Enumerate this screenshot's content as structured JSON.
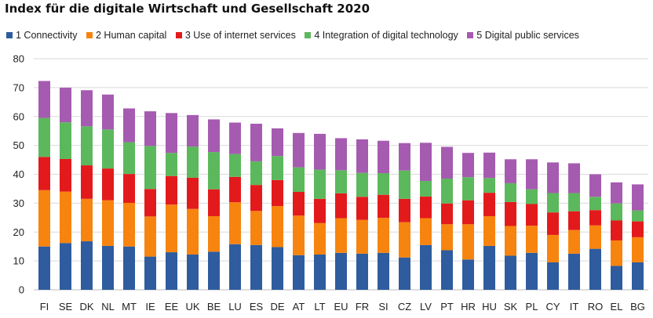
{
  "chart_data": {
    "type": "bar",
    "stacked": true,
    "title": "Index für die digitale Wirtschaft und Gesellschaft 2020",
    "xlabel": "",
    "ylabel": "",
    "ylim": [
      0,
      80
    ],
    "yticks": [
      0,
      10,
      20,
      30,
      40,
      50,
      60,
      70,
      80
    ],
    "grid": true,
    "legend_position": "top",
    "categories": [
      "FI",
      "SE",
      "DK",
      "NL",
      "MT",
      "IE",
      "EE",
      "UK",
      "BE",
      "LU",
      "ES",
      "DE",
      "AT",
      "LT",
      "EU",
      "FR",
      "SI",
      "CZ",
      "LV",
      "PT",
      "HR",
      "HU",
      "SK",
      "PL",
      "CY",
      "IT",
      "RO",
      "EL",
      "BG"
    ],
    "series": [
      {
        "name": "1 Connectivity",
        "color": "#2E5C9E",
        "values": [
          15.0,
          16.2,
          16.8,
          15.2,
          15.0,
          11.5,
          13.0,
          12.2,
          13.2,
          15.8,
          15.5,
          14.8,
          12.0,
          12.2,
          12.8,
          12.5,
          12.8,
          11.2,
          15.5,
          13.7,
          10.5,
          15.2,
          11.8,
          12.8,
          9.5,
          12.5,
          14.2,
          8.3,
          9.5
        ]
      },
      {
        "name": "2 Human capital",
        "color": "#F7840F",
        "values": [
          19.5,
          17.8,
          14.7,
          15.8,
          15.1,
          13.9,
          16.5,
          15.8,
          12.3,
          14.5,
          11.8,
          14.2,
          13.7,
          10.9,
          12.0,
          11.7,
          12.1,
          12.2,
          9.3,
          9.0,
          12.2,
          10.3,
          10.3,
          9.4,
          9.5,
          8.2,
          8.1,
          8.8,
          8.7
        ]
      },
      {
        "name": "3 Use of internet services",
        "color": "#E31A1C",
        "values": [
          11.5,
          11.3,
          11.6,
          11.0,
          10.0,
          9.5,
          9.9,
          10.8,
          9.3,
          8.8,
          9.0,
          9.0,
          8.2,
          8.4,
          8.6,
          8.0,
          8.0,
          8.1,
          7.5,
          7.2,
          8.3,
          8.1,
          8.3,
          7.5,
          7.8,
          6.5,
          5.3,
          6.9,
          5.5
        ]
      },
      {
        "name": "4 Integration of digital technology",
        "color": "#5CB85C",
        "values": [
          13.5,
          12.7,
          13.5,
          13.5,
          11.0,
          14.9,
          8.0,
          10.8,
          12.9,
          7.9,
          8.2,
          8.3,
          8.5,
          10.1,
          8.0,
          8.3,
          7.5,
          9.8,
          5.4,
          8.6,
          8.0,
          5.1,
          6.5,
          5.1,
          6.7,
          6.3,
          4.6,
          5.9,
          3.8
        ]
      },
      {
        "name": "5 Digital public services",
        "color": "#A55BB0",
        "values": [
          12.8,
          12.0,
          12.5,
          12.1,
          11.7,
          12.0,
          13.8,
          10.9,
          11.3,
          10.9,
          13.0,
          9.6,
          11.9,
          12.4,
          11.1,
          11.6,
          11.2,
          9.5,
          13.2,
          11.0,
          8.4,
          8.8,
          8.3,
          10.4,
          10.6,
          10.3,
          7.8,
          7.3,
          9.0
        ]
      }
    ]
  }
}
